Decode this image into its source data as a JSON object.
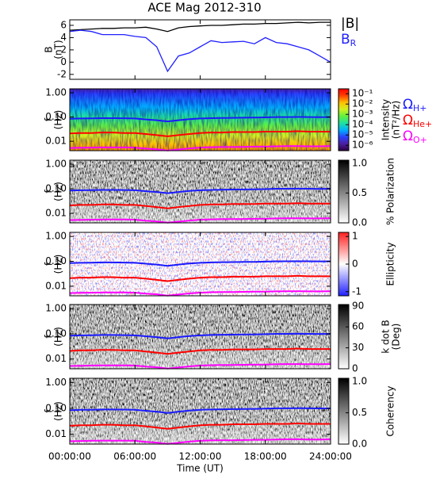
{
  "chart_data": [
    {
      "type": "line",
      "title": "ACE Mag 2012-310",
      "ylabel": [
        "B",
        "(nT)"
      ],
      "ylim": [
        -2.8,
        6.9
      ],
      "yticks": [
        -2,
        0,
        2,
        4,
        6
      ],
      "xlim": [
        0,
        24
      ],
      "x": [
        0,
        1,
        2,
        3,
        4,
        5,
        6,
        7,
        8,
        9,
        10,
        11,
        12,
        13,
        14,
        15,
        16,
        17,
        18,
        19,
        20,
        21,
        22,
        23,
        24
      ],
      "series": [
        {
          "name": "|B|",
          "color": "#000000",
          "values": [
            5.2,
            5.3,
            5.4,
            5.5,
            5.5,
            5.6,
            5.6,
            5.7,
            5.4,
            5.0,
            5.6,
            5.8,
            5.9,
            6.0,
            6.0,
            6.1,
            6.2,
            6.2,
            6.3,
            6.3,
            6.4,
            6.5,
            6.4,
            6.5,
            6.5
          ]
        },
        {
          "name": "B",
          "subscript": "R",
          "color": "#2020ff",
          "values": [
            5.0,
            5.2,
            5.0,
            4.5,
            4.5,
            4.5,
            4.2,
            4.0,
            2.5,
            -1.5,
            1.0,
            1.5,
            2.5,
            3.5,
            3.2,
            3.3,
            3.4,
            3.0,
            4.0,
            3.2,
            3.0,
            2.5,
            2.0,
            1.0,
            0.0
          ]
        }
      ]
    },
    {
      "type": "spectrogram",
      "ylabel": [
        "f",
        "(Hz)"
      ],
      "log": true,
      "ylim": [
        0.0041,
        1.46
      ],
      "yticks": [
        {
          "value": 1,
          "label": "1.00"
        },
        {
          "value": 0.1,
          "label": "0.10"
        },
        0.01
      ],
      "xlim": [
        0,
        24
      ],
      "colorbar": {
        "label": [
          "Intensity",
          "(nT²/Hz)"
        ],
        "colormap": "rainbow",
        "log": true,
        "clim": [
          3e-07,
          0.3
        ],
        "ticks": [
          {
            "value": 0.1,
            "label": "10⁻¹"
          },
          {
            "value": 0.01,
            "label": "10⁻²"
          },
          {
            "value": 0.001,
            "label": "10⁻³"
          },
          {
            "value": 0.0001,
            "label": "10⁻⁴"
          },
          {
            "value": 1e-05,
            "label": "10⁻⁵"
          },
          {
            "value": 1e-06,
            "label": "10⁻⁶"
          }
        ]
      },
      "x": [
        0,
        1,
        2,
        3,
        4,
        5,
        6,
        7,
        8,
        9,
        10,
        11,
        12,
        13,
        14,
        15,
        16,
        17,
        18,
        19,
        20,
        21,
        22,
        23,
        24
      ],
      "series": [
        {
          "name": "Ω",
          "subscript": "H+",
          "color": "#1a1aff",
          "values": [
            0.085,
            0.087,
            0.088,
            0.09,
            0.09,
            0.089,
            0.087,
            0.08,
            0.074,
            0.066,
            0.074,
            0.082,
            0.087,
            0.09,
            0.092,
            0.093,
            0.094,
            0.095,
            0.097,
            0.1,
            0.1,
            0.101,
            0.1,
            0.099,
            0.1
          ]
        },
        {
          "name": "Ω",
          "subscript": "He+",
          "color": "#ff0000",
          "values": [
            0.021,
            0.022,
            0.022,
            0.023,
            0.023,
            0.022,
            0.022,
            0.02,
            0.018,
            0.016,
            0.018,
            0.02,
            0.022,
            0.023,
            0.023,
            0.024,
            0.024,
            0.024,
            0.025,
            0.025,
            0.025,
            0.026,
            0.025,
            0.025,
            0.025
          ]
        },
        {
          "name": "Ω",
          "subscript": "O+",
          "color": "#ff00ff",
          "values": [
            0.0053,
            0.0054,
            0.0055,
            0.0056,
            0.0056,
            0.0056,
            0.0055,
            0.005,
            0.0047,
            0.0042,
            0.0046,
            0.0051,
            0.0055,
            0.0057,
            0.0058,
            0.0058,
            0.0059,
            0.006,
            0.006,
            0.0062,
            0.0063,
            0.0063,
            0.0062,
            0.0062,
            0.0063
          ]
        }
      ]
    },
    {
      "type": "spectrogram",
      "ylabel": [
        "f",
        "(Hz)"
      ],
      "log": true,
      "ylim": [
        0.0041,
        1.46
      ],
      "yticks": [
        {
          "value": 1,
          "label": "1.00"
        },
        {
          "value": 0.1,
          "label": "0.10"
        },
        0.01
      ],
      "xlim": [
        0,
        24
      ],
      "colorbar": {
        "label": [
          "% Polarization"
        ],
        "colormap": "gray",
        "log": false,
        "clim": [
          0,
          1.05
        ],
        "ticks": [
          {
            "value": 0,
            "label": "0.0"
          },
          0.5,
          {
            "value": 1,
            "label": "1.0"
          }
        ]
      },
      "x": [
        0,
        1,
        2,
        3,
        4,
        5,
        6,
        7,
        8,
        9,
        10,
        11,
        12,
        13,
        14,
        15,
        16,
        17,
        18,
        19,
        20,
        21,
        22,
        23,
        24
      ],
      "series": [
        {
          "color": "#1a1aff",
          "values": [
            0.085,
            0.087,
            0.088,
            0.09,
            0.09,
            0.089,
            0.087,
            0.08,
            0.074,
            0.066,
            0.074,
            0.082,
            0.087,
            0.09,
            0.092,
            0.093,
            0.094,
            0.095,
            0.097,
            0.1,
            0.1,
            0.101,
            0.1,
            0.099,
            0.1
          ]
        },
        {
          "color": "#ff0000",
          "values": [
            0.021,
            0.022,
            0.022,
            0.023,
            0.023,
            0.022,
            0.022,
            0.02,
            0.018,
            0.016,
            0.018,
            0.02,
            0.022,
            0.023,
            0.023,
            0.024,
            0.024,
            0.024,
            0.025,
            0.025,
            0.025,
            0.026,
            0.025,
            0.025,
            0.025
          ]
        },
        {
          "color": "#ff00ff",
          "values": [
            0.0053,
            0.0054,
            0.0055,
            0.0056,
            0.0056,
            0.0056,
            0.0055,
            0.005,
            0.0047,
            0.0042,
            0.0046,
            0.0051,
            0.0055,
            0.0057,
            0.0058,
            0.0058,
            0.0059,
            0.006,
            0.006,
            0.0062,
            0.0063,
            0.0063,
            0.0062,
            0.0062,
            0.0063
          ]
        }
      ]
    },
    {
      "type": "spectrogram",
      "ylabel": [
        "f",
        "(Hz)"
      ],
      "log": true,
      "ylim": [
        0.0041,
        1.46
      ],
      "yticks": [
        {
          "value": 1,
          "label": "1.00"
        },
        {
          "value": 0.1,
          "label": "0.10"
        },
        0.01
      ],
      "xlim": [
        0,
        24
      ],
      "colorbar": {
        "label": [
          "Ellipticity"
        ],
        "colormap": "bwr",
        "log": false,
        "clim": [
          -1.15,
          1.15
        ],
        "ticks": [
          -1,
          0,
          1
        ]
      },
      "x": [
        0,
        1,
        2,
        3,
        4,
        5,
        6,
        7,
        8,
        9,
        10,
        11,
        12,
        13,
        14,
        15,
        16,
        17,
        18,
        19,
        20,
        21,
        22,
        23,
        24
      ],
      "series": [
        {
          "color": "#1a1aff",
          "values": [
            0.085,
            0.087,
            0.088,
            0.09,
            0.09,
            0.089,
            0.087,
            0.08,
            0.074,
            0.066,
            0.074,
            0.082,
            0.087,
            0.09,
            0.092,
            0.093,
            0.094,
            0.095,
            0.097,
            0.1,
            0.1,
            0.101,
            0.1,
            0.099,
            0.1
          ]
        },
        {
          "color": "#ff0000",
          "values": [
            0.021,
            0.022,
            0.022,
            0.023,
            0.023,
            0.022,
            0.022,
            0.02,
            0.018,
            0.016,
            0.018,
            0.02,
            0.022,
            0.023,
            0.023,
            0.024,
            0.024,
            0.024,
            0.025,
            0.025,
            0.025,
            0.026,
            0.025,
            0.025,
            0.025
          ]
        },
        {
          "color": "#ff00ff",
          "values": [
            0.0053,
            0.0054,
            0.0055,
            0.0056,
            0.0056,
            0.0056,
            0.0055,
            0.005,
            0.0047,
            0.0042,
            0.0046,
            0.0051,
            0.0055,
            0.0057,
            0.0058,
            0.0058,
            0.0059,
            0.006,
            0.006,
            0.0062,
            0.0063,
            0.0063,
            0.0062,
            0.0062,
            0.0063
          ]
        }
      ]
    },
    {
      "type": "spectrogram",
      "ylabel": [
        "f",
        "(Hz)"
      ],
      "log": true,
      "ylim": [
        0.0041,
        1.46
      ],
      "yticks": [
        {
          "value": 1,
          "label": "1.00"
        },
        {
          "value": 0.1,
          "label": "0.10"
        },
        0.01
      ],
      "xlim": [
        0,
        24
      ],
      "colorbar": {
        "label": [
          "k dot B",
          "(Deg)"
        ],
        "colormap": "gray",
        "log": false,
        "clim": [
          0,
          92
        ],
        "ticks": [
          0,
          30,
          60,
          90
        ]
      },
      "x": [
        0,
        1,
        2,
        3,
        4,
        5,
        6,
        7,
        8,
        9,
        10,
        11,
        12,
        13,
        14,
        15,
        16,
        17,
        18,
        19,
        20,
        21,
        22,
        23,
        24
      ],
      "series": [
        {
          "color": "#1a1aff",
          "values": [
            0.085,
            0.087,
            0.088,
            0.09,
            0.09,
            0.089,
            0.087,
            0.08,
            0.074,
            0.066,
            0.074,
            0.082,
            0.087,
            0.09,
            0.092,
            0.093,
            0.094,
            0.095,
            0.097,
            0.1,
            0.1,
            0.101,
            0.1,
            0.099,
            0.1
          ]
        },
        {
          "color": "#ff0000",
          "values": [
            0.021,
            0.022,
            0.022,
            0.023,
            0.023,
            0.022,
            0.022,
            0.02,
            0.018,
            0.016,
            0.018,
            0.02,
            0.022,
            0.023,
            0.023,
            0.024,
            0.024,
            0.024,
            0.025,
            0.025,
            0.025,
            0.026,
            0.025,
            0.025,
            0.025
          ]
        },
        {
          "color": "#ff00ff",
          "values": [
            0.0053,
            0.0054,
            0.0055,
            0.0056,
            0.0056,
            0.0056,
            0.0055,
            0.005,
            0.0047,
            0.0042,
            0.0046,
            0.0051,
            0.0055,
            0.0057,
            0.0058,
            0.0058,
            0.0059,
            0.006,
            0.006,
            0.0062,
            0.0063,
            0.0063,
            0.0062,
            0.0062,
            0.0063
          ]
        }
      ]
    },
    {
      "type": "spectrogram",
      "ylabel": [
        "f",
        "(Hz)"
      ],
      "log": true,
      "ylim": [
        0.0041,
        1.46
      ],
      "yticks": [
        {
          "value": 1,
          "label": "1.00"
        },
        {
          "value": 0.1,
          "label": "0.10"
        },
        0.01
      ],
      "colorbar": {
        "label": [
          "Coherency"
        ],
        "colormap": "gray",
        "log": false,
        "clim": [
          0,
          1.05
        ],
        "ticks": [
          {
            "value": 0,
            "label": "0.0"
          },
          0.5,
          {
            "value": 1,
            "label": "1.0"
          }
        ]
      },
      "xlabel": "Time (UT)",
      "xlim": [
        0,
        24
      ],
      "xticks": [
        {
          "value": 0,
          "label": "00:00:00"
        },
        {
          "value": 6,
          "label": "06:00:00"
        },
        {
          "value": 12,
          "label": "12:00:00"
        },
        {
          "value": 18,
          "label": "18:00:00"
        },
        {
          "value": 24,
          "label": "24:00:00"
        }
      ],
      "x": [
        0,
        1,
        2,
        3,
        4,
        5,
        6,
        7,
        8,
        9,
        10,
        11,
        12,
        13,
        14,
        15,
        16,
        17,
        18,
        19,
        20,
        21,
        22,
        23,
        24
      ],
      "series": [
        {
          "color": "#1a1aff",
          "values": [
            0.085,
            0.087,
            0.088,
            0.09,
            0.09,
            0.089,
            0.087,
            0.08,
            0.074,
            0.066,
            0.074,
            0.082,
            0.087,
            0.09,
            0.092,
            0.093,
            0.094,
            0.095,
            0.097,
            0.1,
            0.1,
            0.101,
            0.1,
            0.099,
            0.1
          ]
        },
        {
          "color": "#ff0000",
          "values": [
            0.021,
            0.022,
            0.022,
            0.023,
            0.023,
            0.022,
            0.022,
            0.02,
            0.018,
            0.016,
            0.018,
            0.02,
            0.022,
            0.023,
            0.023,
            0.024,
            0.024,
            0.024,
            0.025,
            0.025,
            0.025,
            0.026,
            0.025,
            0.025,
            0.025
          ]
        },
        {
          "color": "#ff00ff",
          "values": [
            0.0053,
            0.0054,
            0.0055,
            0.0056,
            0.0056,
            0.0056,
            0.0055,
            0.005,
            0.0047,
            0.0042,
            0.0046,
            0.0051,
            0.0055,
            0.0057,
            0.0058,
            0.0058,
            0.0059,
            0.006,
            0.006,
            0.0062,
            0.0063,
            0.0063,
            0.0062,
            0.0062,
            0.0063
          ]
        }
      ]
    }
  ]
}
